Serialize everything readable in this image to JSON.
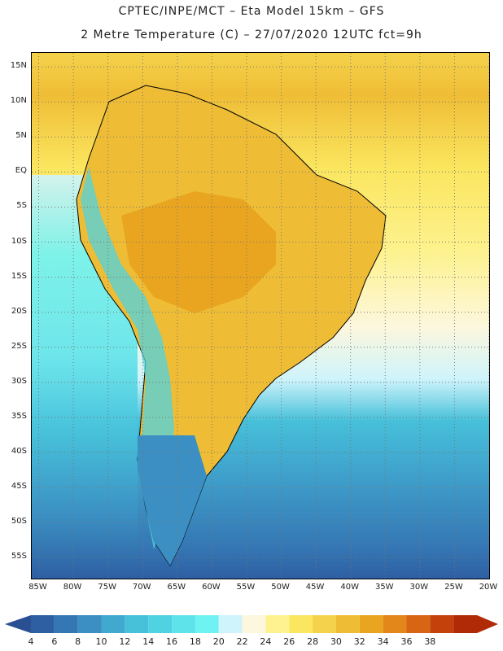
{
  "header": {
    "line1": "CPTEC/INPE/MCT –  Eta Model 15km – GFS",
    "line2": "2 Metre Temperature (C) – 27/07/2020 12UTC fct=9h"
  },
  "map": {
    "lat_labels": [
      "15N",
      "10N",
      "5N",
      "EQ",
      "5S",
      "10S",
      "15S",
      "20S",
      "25S",
      "30S",
      "35S",
      "40S",
      "45S",
      "50S",
      "55S"
    ],
    "lat_values": [
      15,
      10,
      5,
      0,
      -5,
      -10,
      -15,
      -20,
      -25,
      -30,
      -35,
      -40,
      -45,
      -50,
      -55
    ],
    "lon_labels": [
      "85W",
      "80W",
      "75W",
      "70W",
      "65W",
      "60W",
      "55W",
      "50W",
      "45W",
      "40W",
      "35W",
      "30W",
      "25W",
      "20W"
    ],
    "lon_values": [
      -85,
      -80,
      -75,
      -70,
      -65,
      -60,
      -55,
      -50,
      -45,
      -40,
      -35,
      -30,
      -25,
      -20
    ],
    "lon_range": [
      -86,
      -20
    ],
    "lat_range": [
      -58,
      17
    ]
  },
  "colorbar": {
    "labels": [
      "4",
      "6",
      "8",
      "10",
      "12",
      "14",
      "16",
      "18",
      "20",
      "22",
      "24",
      "26",
      "28",
      "30",
      "32",
      "34",
      "36",
      "38"
    ],
    "colors": [
      "#2e5fa3",
      "#3577b4",
      "#3b8fc2",
      "#41a8cf",
      "#47c0da",
      "#4fd3e2",
      "#5fe3ea",
      "#6ff2f2",
      "#cff4fb",
      "#fdf7dd",
      "#fdf28f",
      "#fbe65f",
      "#f5d24b",
      "#efbd35",
      "#e9a51f",
      "#e3871a",
      "#d86513",
      "#c4410b",
      "#b02a08"
    ],
    "low_color": "#2a4f93",
    "high_color": "#b02a08"
  }
}
